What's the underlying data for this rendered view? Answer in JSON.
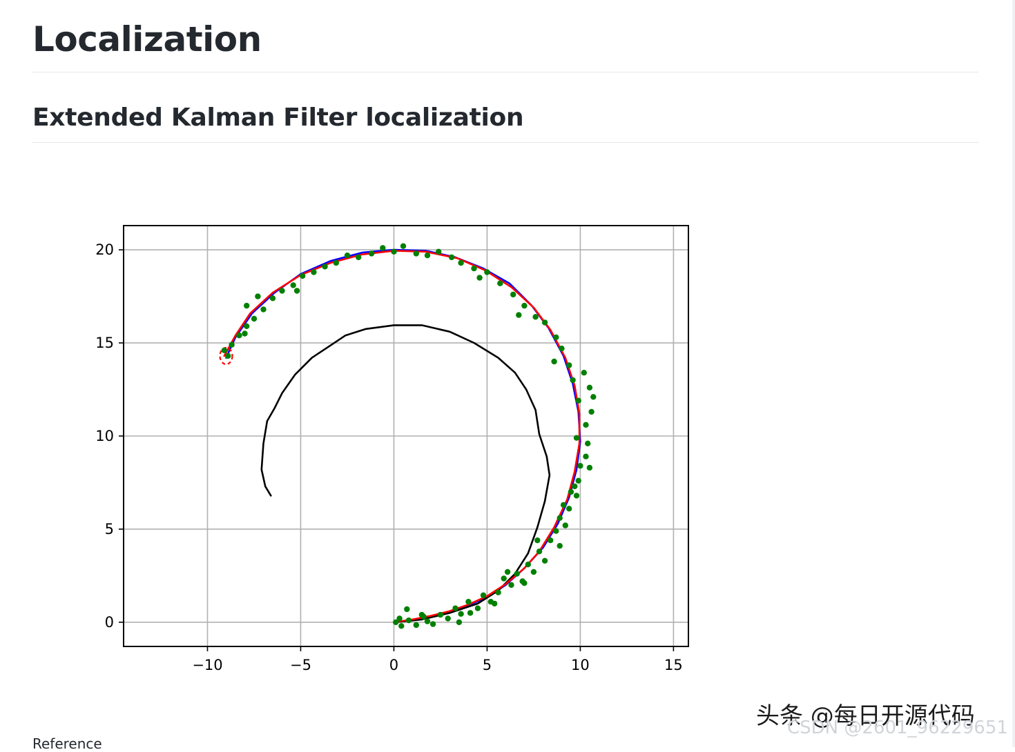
{
  "page": {
    "title": "Localization",
    "section_title": "Extended Kalman Filter localization",
    "reference_label": "Reference",
    "watermark_primary": "头条 @每日开源代码",
    "watermark_secondary": "CSDN @2601_96229651"
  },
  "chart_data": {
    "type": "line",
    "title": "",
    "xlabel": "",
    "ylabel": "",
    "xlim": [
      -14.5,
      15.8
    ],
    "ylim": [
      -1.3,
      21.3
    ],
    "x_ticks": [
      -10,
      -5,
      0,
      5,
      10,
      15
    ],
    "x_tick_labels": [
      "−10",
      "−5",
      "0",
      "5",
      "10",
      "15"
    ],
    "y_ticks": [
      0,
      5,
      10,
      15,
      20
    ],
    "y_tick_labels": [
      "0",
      "5",
      "10",
      "15",
      "20"
    ],
    "grid": true,
    "colors": {
      "true_trajectory": "#0000ff",
      "dead_reckoning": "#000000",
      "ekf_estimate": "#ff0000",
      "observations": "#008000",
      "covariance_ellipse": "#ff0000"
    },
    "series": [
      {
        "style": "line",
        "color": "#0000ff",
        "points": [
          [
            0.0,
            0.0
          ],
          [
            1.0,
            0.1
          ],
          [
            2.0,
            0.3
          ],
          [
            3.0,
            0.55
          ],
          [
            4.0,
            0.9
          ],
          [
            5.0,
            1.35
          ],
          [
            6.0,
            2.0
          ],
          [
            7.0,
            2.9
          ],
          [
            8.0,
            4.0
          ],
          [
            8.8,
            5.3
          ],
          [
            9.4,
            6.7
          ],
          [
            9.8,
            8.2
          ],
          [
            10.0,
            9.7
          ],
          [
            9.9,
            11.3
          ],
          [
            9.6,
            12.8
          ],
          [
            9.1,
            14.3
          ],
          [
            8.3,
            15.8
          ],
          [
            7.4,
            17.0
          ],
          [
            6.2,
            18.2
          ],
          [
            4.8,
            19.0
          ],
          [
            3.3,
            19.6
          ],
          [
            1.7,
            19.95
          ],
          [
            0.0,
            20.0
          ],
          [
            -1.7,
            19.85
          ],
          [
            -3.4,
            19.4
          ],
          [
            -5.0,
            18.7
          ],
          [
            -6.4,
            17.7
          ],
          [
            -7.6,
            16.6
          ],
          [
            -8.5,
            15.3
          ],
          [
            -9.0,
            14.2
          ]
        ]
      },
      {
        "style": "line",
        "color": "#000000",
        "points": [
          [
            0.0,
            0.0
          ],
          [
            1.5,
            0.15
          ],
          [
            3.0,
            0.5
          ],
          [
            4.5,
            1.0
          ],
          [
            5.6,
            1.7
          ],
          [
            6.5,
            2.6
          ],
          [
            7.2,
            3.7
          ],
          [
            7.7,
            5.1
          ],
          [
            8.1,
            6.5
          ],
          [
            8.35,
            7.9
          ],
          [
            8.2,
            8.9
          ],
          [
            7.8,
            10.1
          ],
          [
            7.6,
            11.4
          ],
          [
            7.1,
            12.5
          ],
          [
            6.5,
            13.4
          ],
          [
            5.6,
            14.2
          ],
          [
            4.3,
            15.0
          ],
          [
            3.0,
            15.6
          ],
          [
            1.5,
            15.95
          ],
          [
            0.0,
            15.95
          ],
          [
            -1.5,
            15.75
          ],
          [
            -2.6,
            15.4
          ],
          [
            -3.5,
            14.8
          ],
          [
            -4.4,
            14.2
          ],
          [
            -5.3,
            13.3
          ],
          [
            -6.0,
            12.3
          ],
          [
            -6.4,
            11.5
          ],
          [
            -6.8,
            10.8
          ],
          [
            -7.0,
            9.6
          ],
          [
            -7.1,
            8.2
          ],
          [
            -6.9,
            7.3
          ],
          [
            -6.6,
            6.8
          ]
        ]
      },
      {
        "style": "line",
        "color": "#ff0000",
        "points": [
          [
            0.0,
            0.0
          ],
          [
            1.0,
            0.15
          ],
          [
            2.0,
            0.35
          ],
          [
            3.0,
            0.6
          ],
          [
            4.0,
            0.95
          ],
          [
            5.0,
            1.4
          ],
          [
            6.0,
            2.05
          ],
          [
            7.0,
            2.9
          ],
          [
            7.8,
            3.8
          ],
          [
            8.6,
            5.1
          ],
          [
            9.3,
            6.6
          ],
          [
            9.7,
            8.1
          ],
          [
            9.95,
            9.6
          ],
          [
            9.95,
            11.2
          ],
          [
            9.7,
            12.7
          ],
          [
            9.2,
            14.2
          ],
          [
            8.4,
            15.7
          ],
          [
            7.5,
            16.9
          ],
          [
            6.3,
            18.0
          ],
          [
            4.9,
            18.9
          ],
          [
            3.4,
            19.55
          ],
          [
            1.7,
            19.9
          ],
          [
            0.0,
            19.95
          ],
          [
            -1.7,
            19.75
          ],
          [
            -3.4,
            19.3
          ],
          [
            -5.0,
            18.65
          ],
          [
            -6.5,
            17.7
          ],
          [
            -7.7,
            16.6
          ],
          [
            -8.5,
            15.4
          ],
          [
            -9.1,
            14.3
          ]
        ]
      }
    ],
    "observations": [
      [
        0.1,
        0.0
      ],
      [
        0.4,
        -0.2
      ],
      [
        0.8,
        0.1
      ],
      [
        1.2,
        -0.15
      ],
      [
        0.7,
        0.7
      ],
      [
        1.6,
        0.3
      ],
      [
        2.1,
        -0.1
      ],
      [
        2.5,
        0.4
      ],
      [
        2.9,
        0.2
      ],
      [
        3.3,
        0.75
      ],
      [
        3.6,
        0.45
      ],
      [
        4.0,
        1.1
      ],
      [
        4.5,
        0.75
      ],
      [
        4.8,
        1.45
      ],
      [
        5.2,
        1.1
      ],
      [
        5.6,
        1.6
      ],
      [
        5.9,
        2.35
      ],
      [
        6.3,
        2.0
      ],
      [
        6.6,
        2.6
      ],
      [
        6.9,
        2.2
      ],
      [
        7.2,
        3.1
      ],
      [
        7.5,
        2.7
      ],
      [
        7.8,
        3.8
      ],
      [
        8.1,
        3.3
      ],
      [
        8.4,
        4.4
      ],
      [
        8.7,
        4.9
      ],
      [
        8.9,
        5.6
      ],
      [
        9.2,
        5.2
      ],
      [
        9.4,
        6.1
      ],
      [
        9.5,
        7.0
      ],
      [
        9.8,
        6.8
      ],
      [
        9.9,
        7.6
      ],
      [
        10.0,
        8.4
      ],
      [
        10.3,
        8.9
      ],
      [
        10.4,
        9.6
      ],
      [
        9.8,
        9.9
      ],
      [
        10.3,
        10.6
      ],
      [
        10.6,
        11.3
      ],
      [
        9.9,
        11.9
      ],
      [
        10.5,
        12.6
      ],
      [
        9.6,
        13.0
      ],
      [
        9.4,
        13.8
      ],
      [
        9.0,
        14.7
      ],
      [
        8.7,
        15.3
      ],
      [
        8.1,
        16.1
      ],
      [
        7.6,
        16.4
      ],
      [
        7.0,
        17.0
      ],
      [
        6.4,
        17.6
      ],
      [
        5.7,
        18.2
      ],
      [
        5.0,
        18.8
      ],
      [
        4.3,
        19.0
      ],
      [
        3.6,
        19.3
      ],
      [
        3.1,
        19.6
      ],
      [
        2.4,
        19.9
      ],
      [
        1.8,
        19.7
      ],
      [
        1.2,
        19.8
      ],
      [
        0.5,
        20.2
      ],
      [
        0.0,
        19.9
      ],
      [
        -0.6,
        20.1
      ],
      [
        -1.2,
        19.8
      ],
      [
        -1.9,
        19.6
      ],
      [
        -2.5,
        19.7
      ],
      [
        -3.1,
        19.3
      ],
      [
        -3.7,
        19.1
      ],
      [
        -4.3,
        18.8
      ],
      [
        -4.9,
        18.6
      ],
      [
        -5.4,
        18.1
      ],
      [
        -6.0,
        17.8
      ],
      [
        -6.5,
        17.4
      ],
      [
        -7.0,
        16.8
      ],
      [
        -7.5,
        16.3
      ],
      [
        -7.9,
        15.9
      ],
      [
        -8.3,
        15.4
      ],
      [
        -8.7,
        14.9
      ],
      [
        -9.1,
        14.6
      ],
      [
        -8.9,
        14.3
      ],
      [
        -5.2,
        17.8
      ],
      [
        -7.3,
        17.5
      ],
      [
        -7.9,
        17.0
      ],
      [
        -8.0,
        15.5
      ],
      [
        4.6,
        18.5
      ],
      [
        6.7,
        16.5
      ],
      [
        8.6,
        14.0
      ],
      [
        10.2,
        13.4
      ],
      [
        10.7,
        12.1
      ],
      [
        10.5,
        8.3
      ],
      [
        9.7,
        7.3
      ],
      [
        8.9,
        4.1
      ],
      [
        7.0,
        2.1
      ],
      [
        5.4,
        1.0
      ],
      [
        3.5,
        0.0
      ],
      [
        1.8,
        0.05
      ],
      [
        0.3,
        0.2
      ],
      [
        1.5,
        0.4
      ],
      [
        4.1,
        0.5
      ],
      [
        6.1,
        2.7
      ],
      [
        7.7,
        4.4
      ],
      [
        9.1,
        6.3
      ]
    ],
    "covariance_ellipse": {
      "center": [
        -9.0,
        14.3
      ],
      "color": "#ff0000"
    }
  }
}
